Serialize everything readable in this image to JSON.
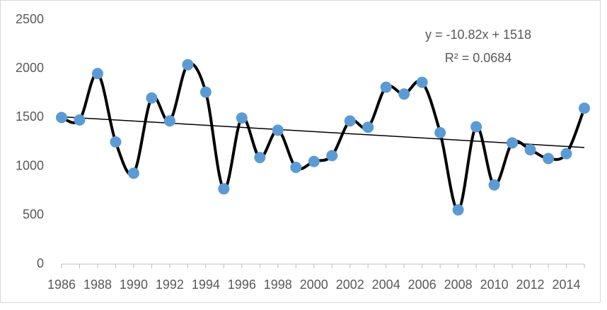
{
  "chart_data": {
    "type": "line",
    "categories": [
      "1986",
      null,
      "1988",
      null,
      "1990",
      null,
      "1992",
      null,
      "1994",
      null,
      "1996",
      null,
      "1998",
      null,
      "2000",
      null,
      "2002",
      null,
      "2004",
      null,
      "2006",
      null,
      "2008",
      null,
      "2010",
      null,
      "2012",
      null,
      "2014",
      null
    ],
    "values": [
      1500,
      1475,
      1950,
      1250,
      930,
      1700,
      1465,
      2040,
      1760,
      770,
      1495,
      1090,
      1370,
      990,
      1050,
      1110,
      1465,
      1400,
      1810,
      1740,
      1860,
      1345,
      555,
      1405,
      810,
      1240,
      1170,
      1080,
      1130,
      1595
    ],
    "color": "#000000",
    "marker_color": "#5b9bd5",
    "smooth": true,
    "ylim": [
      0,
      2500
    ],
    "yticks": [
      0,
      500,
      1000,
      1500,
      2000,
      2500
    ],
    "grid": false,
    "trendline": {
      "slope": -10.82,
      "intercept": 1518,
      "label": "y = -10.82x + 1518",
      "r2_label": "R² = 0.0684"
    }
  }
}
